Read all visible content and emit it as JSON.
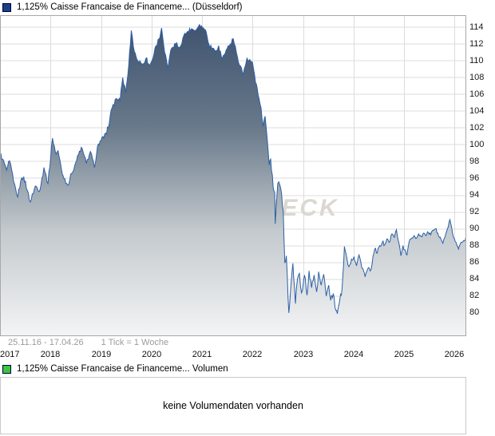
{
  "price_chart": {
    "legend": {
      "label": "1,125% Caisse Francaise de Financeme... (Düsseldorf)",
      "swatch_color": "#1c3e86"
    },
    "footer": {
      "range": "25.11.16 - 17.04.26",
      "tick_info": "1 Tick = 1 Woche"
    },
    "watermark": "CHECK"
  },
  "volume_chart": {
    "legend": {
      "label": "1,125% Caisse Francaise de Financeme... Volumen",
      "swatch_color": "#3fc43f"
    },
    "message": "keine Volumendaten vorhanden"
  },
  "chart_data": {
    "type": "area",
    "title": "1,125% Caisse Francaise de Financeme... (Düsseldorf)",
    "ylabel": "",
    "xlabel": "",
    "x_ticks": [
      "2017",
      "2018",
      "2019",
      "2020",
      "2021",
      "2022",
      "2023",
      "2024",
      "2025",
      "2026"
    ],
    "y_ticks": [
      114,
      112,
      110,
      108,
      106,
      104,
      102,
      100,
      98,
      96,
      94,
      92,
      90,
      88,
      86,
      84,
      82,
      80
    ],
    "ylim": [
      77.5,
      115.8
    ],
    "x_range_years": [
      2017.0,
      2026.29
    ],
    "tick_unit": "1 Tick = 1 Woche",
    "date_range": "25.11.16 - 17.04.26",
    "grid": true,
    "legend_position": "top-left",
    "line_color": "#2c5fa5",
    "grid_color": "#dcdcdc",
    "border_color": "#a8a8a8",
    "watermark_color": "#dbd8d1",
    "area_gradient": [
      {
        "o": 0.0,
        "c": "#405470"
      },
      {
        "o": 0.33,
        "c": "#68798a"
      },
      {
        "o": 0.66,
        "c": "#c3c9cd"
      },
      {
        "o": 1.0,
        "c": "#f3f4f5"
      }
    ],
    "series": [
      {
        "name": "1,125% Caisse Francaise de Financeme... (Düsseldorf)",
        "points_format": [
          "decimal_year",
          "price_percent",
          "weekly_noise_amplitude"
        ],
        "points": [
          [
            2017.0,
            99.0,
            0.3
          ],
          [
            2017.05,
            98.3,
            0.3
          ],
          [
            2017.13,
            97.0,
            0.3
          ],
          [
            2017.19,
            98.1,
            0.3
          ],
          [
            2017.27,
            95.6,
            0.3
          ],
          [
            2017.35,
            93.8,
            0.3
          ],
          [
            2017.41,
            95.7,
            0.3
          ],
          [
            2017.47,
            96.2,
            0.3
          ],
          [
            2017.54,
            94.6,
            0.3
          ],
          [
            2017.6,
            93.2,
            0.3
          ],
          [
            2017.7,
            95.1,
            0.3
          ],
          [
            2017.79,
            94.6,
            0.3
          ],
          [
            2017.87,
            97.3,
            0.3
          ],
          [
            2017.95,
            95.4,
            0.3
          ],
          [
            2018.04,
            100.8,
            0.25
          ],
          [
            2018.11,
            98.9,
            0.3
          ],
          [
            2018.15,
            99.3,
            0.3
          ],
          [
            2018.23,
            96.6,
            0.3
          ],
          [
            2018.34,
            95.2,
            0.3
          ],
          [
            2018.42,
            96.6,
            0.3
          ],
          [
            2018.5,
            97.9,
            0.3
          ],
          [
            2018.61,
            99.7,
            0.3
          ],
          [
            2018.71,
            97.8,
            0.3
          ],
          [
            2018.79,
            99.2,
            0.3
          ],
          [
            2018.87,
            97.3,
            0.3
          ],
          [
            2018.93,
            99.8,
            0.3
          ],
          [
            2019.0,
            100.5,
            0.3
          ],
          [
            2019.11,
            101.3,
            0.3
          ],
          [
            2019.22,
            104.4,
            0.3
          ],
          [
            2019.3,
            105.5,
            0.35
          ],
          [
            2019.38,
            105.3,
            0.35
          ],
          [
            2019.43,
            108.0,
            0.35
          ],
          [
            2019.49,
            106.2,
            0.35
          ],
          [
            2019.55,
            109.5,
            0.3
          ],
          [
            2019.6,
            113.6,
            0.25
          ],
          [
            2019.66,
            111.1,
            0.4
          ],
          [
            2019.73,
            110.0,
            0.4
          ],
          [
            2019.81,
            109.6,
            0.35
          ],
          [
            2019.89,
            110.3,
            0.35
          ],
          [
            2019.96,
            109.4,
            0.3
          ],
          [
            2020.01,
            110.0,
            0.3
          ],
          [
            2020.09,
            111.8,
            0.3
          ],
          [
            2020.15,
            112.6,
            0.3
          ],
          [
            2020.2,
            113.9,
            0.2
          ],
          [
            2020.26,
            111.0,
            0.4
          ],
          [
            2020.32,
            109.1,
            0.35
          ],
          [
            2020.4,
            111.5,
            0.3
          ],
          [
            2020.48,
            112.0,
            0.3
          ],
          [
            2020.56,
            111.6,
            0.3
          ],
          [
            2020.64,
            113.0,
            0.25
          ],
          [
            2020.72,
            113.5,
            0.25
          ],
          [
            2020.79,
            113.8,
            0.2
          ],
          [
            2020.87,
            113.6,
            0.2
          ],
          [
            2020.95,
            114.3,
            0.15
          ],
          [
            2021.03,
            113.9,
            0.2
          ],
          [
            2021.08,
            113.5,
            0.2
          ],
          [
            2021.14,
            111.9,
            0.3
          ],
          [
            2021.21,
            111.5,
            0.3
          ],
          [
            2021.27,
            111.2,
            0.3
          ],
          [
            2021.33,
            111.8,
            0.3
          ],
          [
            2021.4,
            110.2,
            0.3
          ],
          [
            2021.48,
            111.3,
            0.3
          ],
          [
            2021.56,
            112.0,
            0.25
          ],
          [
            2021.62,
            112.6,
            0.25
          ],
          [
            2021.7,
            110.5,
            0.3
          ],
          [
            2021.76,
            109.4,
            0.3
          ],
          [
            2021.82,
            108.4,
            0.3
          ],
          [
            2021.89,
            110.3,
            0.25
          ],
          [
            2021.93,
            110.0,
            0.25
          ],
          [
            2022.0,
            109.8,
            0.3
          ],
          [
            2022.06,
            107.4,
            0.35
          ],
          [
            2022.11,
            106.0,
            0.35
          ],
          [
            2022.17,
            104.4,
            0.4
          ],
          [
            2022.21,
            102.2,
            0.4
          ],
          [
            2022.25,
            103.4,
            0.4
          ],
          [
            2022.29,
            100.8,
            0.45
          ],
          [
            2022.33,
            97.6,
            0.45
          ],
          [
            2022.36,
            98.3,
            0.45
          ],
          [
            2022.41,
            94.9,
            0.45
          ],
          [
            2022.44,
            94.4,
            0.4
          ],
          [
            2022.45,
            90.6,
            0.3
          ],
          [
            2022.5,
            95.4,
            0.45
          ],
          [
            2022.56,
            94.8,
            0.45
          ],
          [
            2022.61,
            92.0,
            0.5
          ],
          [
            2022.64,
            86.0,
            0.5
          ],
          [
            2022.67,
            86.8,
            0.5
          ],
          [
            2022.72,
            80.0,
            0.35
          ],
          [
            2022.77,
            84.0,
            0.5
          ],
          [
            2022.8,
            85.9,
            0.45
          ],
          [
            2022.85,
            81.1,
            0.5
          ],
          [
            2022.89,
            84.0,
            0.5
          ],
          [
            2022.93,
            84.7,
            0.45
          ],
          [
            2022.97,
            82.4,
            0.45
          ],
          [
            2023.03,
            84.5,
            0.45
          ],
          [
            2023.08,
            82.1,
            0.45
          ],
          [
            2023.12,
            85.0,
            0.4
          ],
          [
            2023.17,
            83.0,
            0.4
          ],
          [
            2023.22,
            84.5,
            0.4
          ],
          [
            2023.27,
            82.5,
            0.4
          ],
          [
            2023.31,
            84.9,
            0.4
          ],
          [
            2023.36,
            83.3,
            0.4
          ],
          [
            2023.41,
            84.6,
            0.4
          ],
          [
            2023.46,
            82.0,
            0.4
          ],
          [
            2023.51,
            83.3,
            0.4
          ],
          [
            2023.55,
            81.5,
            0.4
          ],
          [
            2023.6,
            82.3,
            0.35
          ],
          [
            2023.65,
            80.3,
            0.3
          ],
          [
            2023.68,
            79.9,
            0.25
          ],
          [
            2023.73,
            81.6,
            0.4
          ],
          [
            2023.76,
            82.1,
            0.4
          ],
          [
            2023.79,
            84.5,
            0.4
          ],
          [
            2023.82,
            87.9,
            0.3
          ],
          [
            2023.87,
            86.5,
            0.35
          ],
          [
            2023.91,
            85.5,
            0.35
          ],
          [
            2023.96,
            86.4,
            0.35
          ],
          [
            2024.01,
            86.7,
            0.35
          ],
          [
            2024.06,
            85.6,
            0.35
          ],
          [
            2024.11,
            86.9,
            0.3
          ],
          [
            2024.15,
            85.9,
            0.3
          ],
          [
            2024.2,
            85.0,
            0.3
          ],
          [
            2024.23,
            84.3,
            0.25
          ],
          [
            2024.28,
            85.2,
            0.3
          ],
          [
            2024.33,
            85.0,
            0.3
          ],
          [
            2024.37,
            85.9,
            0.3
          ],
          [
            2024.42,
            87.6,
            0.3
          ],
          [
            2024.47,
            87.1,
            0.3
          ],
          [
            2024.52,
            88.0,
            0.25
          ],
          [
            2024.57,
            88.4,
            0.25
          ],
          [
            2024.62,
            88.1,
            0.25
          ],
          [
            2024.66,
            88.8,
            0.25
          ],
          [
            2024.71,
            88.4,
            0.25
          ],
          [
            2024.76,
            89.4,
            0.25
          ],
          [
            2024.81,
            89.0,
            0.25
          ],
          [
            2024.85,
            89.9,
            0.2
          ],
          [
            2024.9,
            88.3,
            0.3
          ],
          [
            2024.94,
            86.8,
            0.25
          ],
          [
            2024.98,
            88.0,
            0.25
          ],
          [
            2025.01,
            87.5,
            0.25
          ],
          [
            2025.06,
            86.9,
            0.25
          ],
          [
            2025.1,
            88.4,
            0.25
          ],
          [
            2025.15,
            88.9,
            0.2
          ],
          [
            2025.2,
            89.2,
            0.2
          ],
          [
            2025.25,
            88.9,
            0.2
          ],
          [
            2025.29,
            89.4,
            0.2
          ],
          [
            2025.34,
            89.1,
            0.2
          ],
          [
            2025.39,
            89.5,
            0.2
          ],
          [
            2025.43,
            89.2,
            0.2
          ],
          [
            2025.48,
            89.6,
            0.2
          ],
          [
            2025.53,
            89.3,
            0.2
          ],
          [
            2025.58,
            89.8,
            0.2
          ],
          [
            2025.62,
            90.0,
            0.2
          ],
          [
            2025.67,
            89.5,
            0.2
          ],
          [
            2025.72,
            89.0,
            0.2
          ],
          [
            2025.77,
            88.3,
            0.2
          ],
          [
            2025.81,
            89.0,
            0.2
          ],
          [
            2025.86,
            90.0,
            0.15
          ],
          [
            2025.91,
            91.1,
            0.15
          ],
          [
            2025.96,
            89.5,
            0.25
          ],
          [
            2026.0,
            88.8,
            0.2
          ],
          [
            2026.05,
            88.0,
            0.2
          ],
          [
            2026.08,
            87.6,
            0.15
          ],
          [
            2026.13,
            88.4,
            0.15
          ],
          [
            2026.18,
            88.6,
            0.12
          ],
          [
            2026.25,
            88.9,
            0.1
          ]
        ]
      }
    ]
  }
}
